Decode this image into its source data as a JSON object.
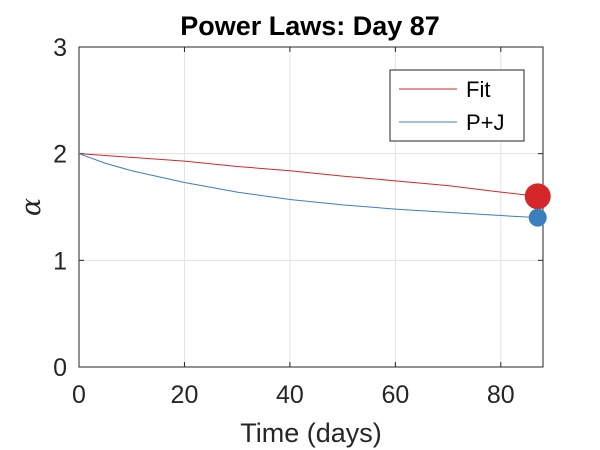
{
  "chart_data": {
    "type": "line",
    "title": "Power Laws: Day 87",
    "xlabel": "Time (days)",
    "ylabel": "α",
    "xlim": [
      0,
      88
    ],
    "ylim": [
      0,
      3
    ],
    "xticks": [
      0,
      20,
      40,
      60,
      80
    ],
    "yticks": [
      0,
      1,
      2,
      3
    ],
    "grid": true,
    "legend_position": "top-right",
    "series": [
      {
        "name": "Fit",
        "color": "#d62728",
        "x": [
          0,
          10,
          20,
          30,
          40,
          50,
          60,
          70,
          80,
          87
        ],
        "y": [
          2.0,
          1.965,
          1.93,
          1.88,
          1.84,
          1.79,
          1.745,
          1.7,
          1.64,
          1.6
        ],
        "endpoint": {
          "x": 87,
          "y": 1.6
        }
      },
      {
        "name": "P+J",
        "color": "#3b7fbf",
        "x": [
          0,
          5,
          10,
          20,
          30,
          40,
          50,
          60,
          70,
          80,
          87
        ],
        "y": [
          2.0,
          1.91,
          1.84,
          1.73,
          1.64,
          1.57,
          1.52,
          1.48,
          1.45,
          1.42,
          1.4
        ],
        "endpoint": {
          "x": 87,
          "y": 1.4
        }
      }
    ]
  }
}
